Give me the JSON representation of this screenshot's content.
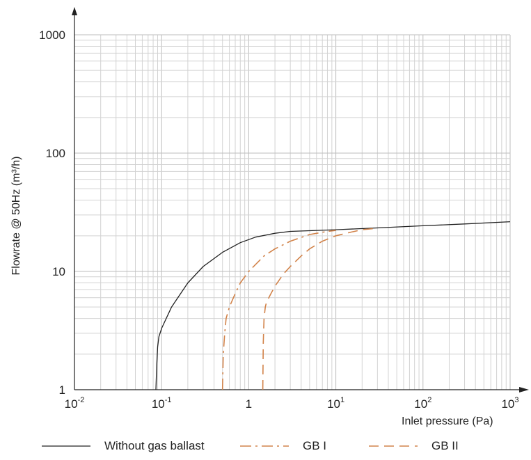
{
  "chart_data": {
    "type": "line",
    "xlabel": "Inlet pressure (Pa)",
    "ylabel": "Flowrate @ 50Hz (m³/h)",
    "x_scale": "log",
    "y_scale": "log",
    "xlim": [
      0.01,
      1000
    ],
    "ylim": [
      1,
      1000
    ],
    "grid": true,
    "legend_position": "bottom",
    "x_ticks": [
      {
        "value": 0.01,
        "base": "10",
        "exp": "-2",
        "label": ""
      },
      {
        "value": 0.1,
        "base": "10",
        "exp": "-1",
        "label": ""
      },
      {
        "value": 1,
        "base": "",
        "exp": "",
        "label": "1"
      },
      {
        "value": 10,
        "base": "10",
        "exp": "1",
        "label": ""
      },
      {
        "value": 100,
        "base": "10",
        "exp": "2",
        "label": ""
      },
      {
        "value": 1000,
        "base": "10",
        "exp": "3",
        "label": ""
      }
    ],
    "y_ticks": [
      {
        "value": 1,
        "label": "1"
      },
      {
        "value": 10,
        "label": "10"
      },
      {
        "value": 100,
        "label": "100"
      },
      {
        "value": 1000,
        "label": "1000"
      }
    ],
    "series": [
      {
        "name": "Without gas ballast",
        "color": "#222222",
        "dash": "solid",
        "x": [
          0.086,
          0.088,
          0.09,
          0.093,
          0.1,
          0.13,
          0.2,
          0.3,
          0.5,
          0.8,
          1.2,
          2,
          3,
          5,
          10,
          30,
          100,
          300,
          1000
        ],
        "y": [
          1,
          1.6,
          2.3,
          2.8,
          3.3,
          5,
          8,
          11,
          14.5,
          17.5,
          19.5,
          21,
          21.8,
          22.1,
          22.5,
          23.3,
          24.3,
          25.2,
          26.3
        ]
      },
      {
        "name": "GB I",
        "color": "#d2834a",
        "dash": "dashdot",
        "x": [
          0.5,
          0.51,
          0.53,
          0.55,
          0.6,
          0.7,
          0.8,
          1,
          1.5,
          2,
          3,
          5,
          8,
          10
        ],
        "y": [
          1,
          2,
          3,
          4,
          5,
          6.5,
          8,
          10,
          13.5,
          15.5,
          18,
          20.5,
          21.8,
          22.2
        ]
      },
      {
        "name": "GB II",
        "color": "#d2834a",
        "dash": "dash",
        "x": [
          1.45,
          1.47,
          1.5,
          1.55,
          1.6,
          1.8,
          2,
          2.5,
          3,
          4,
          5,
          7,
          10,
          15,
          20,
          30
        ],
        "y": [
          1,
          2.5,
          4,
          5,
          5.5,
          6.5,
          7.5,
          9.5,
          11,
          13.5,
          15.5,
          18,
          20,
          21.5,
          22.5,
          23.2
        ]
      }
    ]
  }
}
